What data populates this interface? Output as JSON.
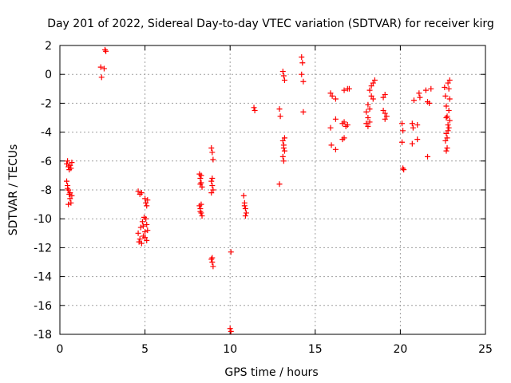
{
  "chart_data": {
    "type": "scatter",
    "title": "Day 201 of 2022, Sidereal Day-to-day VTEC variation (SDTVAR) for receiver kirg",
    "xlabel": "GPS time / hours",
    "ylabel": "SDTVAR / TECUs",
    "xlim": [
      0,
      25
    ],
    "ylim": [
      -18,
      2
    ],
    "xticks": [
      0,
      5,
      10,
      15,
      20,
      25
    ],
    "yticks": [
      2,
      0,
      -2,
      -4,
      -6,
      -8,
      -10,
      -12,
      -14,
      -16,
      -18
    ],
    "grid": true,
    "marker": "+",
    "color": "#ff0000",
    "series": [
      {
        "name": "SDTVAR",
        "points": [
          [
            0.4,
            -6.2
          ],
          [
            0.45,
            -6.0
          ],
          [
            0.5,
            -6.4
          ],
          [
            0.55,
            -6.6
          ],
          [
            0.6,
            -6.3
          ],
          [
            0.65,
            -6.5
          ],
          [
            0.7,
            -6.1
          ],
          [
            0.4,
            -7.4
          ],
          [
            0.45,
            -7.7
          ],
          [
            0.5,
            -8.0
          ],
          [
            0.55,
            -8.3
          ],
          [
            0.6,
            -8.6
          ],
          [
            0.65,
            -8.9
          ],
          [
            0.7,
            -8.4
          ],
          [
            0.5,
            -9.0
          ],
          [
            0.6,
            -8.2
          ],
          [
            0.45,
            -7.9
          ],
          [
            2.4,
            0.5
          ],
          [
            2.45,
            -0.2
          ],
          [
            2.6,
            0.4
          ],
          [
            2.65,
            1.7
          ],
          [
            2.7,
            1.6
          ],
          [
            4.6,
            -8.1
          ],
          [
            4.7,
            -8.3
          ],
          [
            4.8,
            -8.2
          ],
          [
            4.6,
            -11.0
          ],
          [
            4.7,
            -11.4
          ],
          [
            4.8,
            -11.7
          ],
          [
            4.9,
            -11.2
          ],
          [
            5.0,
            -10.9
          ],
          [
            5.1,
            -11.5
          ],
          [
            4.75,
            -10.6
          ],
          [
            4.85,
            -10.2
          ],
          [
            4.95,
            -9.9
          ],
          [
            5.05,
            -10.0
          ],
          [
            5.15,
            -10.8
          ],
          [
            4.65,
            -11.6
          ],
          [
            5.0,
            -11.3
          ],
          [
            4.9,
            -10.5
          ],
          [
            5.1,
            -10.4
          ],
          [
            5.0,
            -8.6
          ],
          [
            5.05,
            -8.9
          ],
          [
            5.1,
            -9.1
          ],
          [
            5.15,
            -8.7
          ],
          [
            8.2,
            -6.9
          ],
          [
            8.25,
            -7.2
          ],
          [
            8.3,
            -7.5
          ],
          [
            8.35,
            -7.8
          ],
          [
            8.3,
            -7.0
          ],
          [
            8.25,
            -7.6
          ],
          [
            8.2,
            -9.1
          ],
          [
            8.25,
            -9.3
          ],
          [
            8.3,
            -9.6
          ],
          [
            8.35,
            -9.8
          ],
          [
            8.3,
            -9.0
          ],
          [
            8.25,
            -9.5
          ],
          [
            8.9,
            -5.1
          ],
          [
            8.95,
            -5.4
          ],
          [
            9.0,
            -5.9
          ],
          [
            8.9,
            -7.4
          ],
          [
            8.95,
            -7.7
          ],
          [
            9.0,
            -8.0
          ],
          [
            8.9,
            -8.2
          ],
          [
            8.95,
            -7.2
          ],
          [
            8.9,
            -12.8
          ],
          [
            8.95,
            -13.0
          ],
          [
            9.0,
            -13.3
          ],
          [
            8.95,
            -12.7
          ],
          [
            10.05,
            -12.3
          ],
          [
            10.0,
            -17.6
          ],
          [
            10.05,
            -17.8
          ],
          [
            10.8,
            -8.4
          ],
          [
            10.85,
            -8.9
          ],
          [
            10.9,
            -9.3
          ],
          [
            10.95,
            -9.6
          ],
          [
            10.85,
            -9.1
          ],
          [
            10.9,
            -9.8
          ],
          [
            11.4,
            -2.3
          ],
          [
            11.45,
            -2.5
          ],
          [
            12.9,
            -2.4
          ],
          [
            12.95,
            -2.9
          ],
          [
            12.9,
            -7.6
          ],
          [
            13.1,
            0.2
          ],
          [
            13.15,
            -0.1
          ],
          [
            13.2,
            -0.4
          ],
          [
            13.1,
            -4.6
          ],
          [
            13.15,
            -4.9
          ],
          [
            13.2,
            -5.3
          ],
          [
            13.1,
            -5.7
          ],
          [
            13.15,
            -6.0
          ],
          [
            13.2,
            -4.4
          ],
          [
            13.15,
            -5.1
          ],
          [
            14.2,
            1.2
          ],
          [
            14.25,
            0.8
          ],
          [
            14.3,
            -0.5
          ],
          [
            14.2,
            0.0
          ],
          [
            14.3,
            -2.6
          ],
          [
            15.9,
            -1.3
          ],
          [
            16.0,
            -1.5
          ],
          [
            16.2,
            -1.7
          ],
          [
            15.9,
            -3.7
          ],
          [
            16.2,
            -3.1
          ],
          [
            15.95,
            -4.9
          ],
          [
            16.2,
            -5.2
          ],
          [
            16.6,
            -4.5
          ],
          [
            16.7,
            -4.4
          ],
          [
            16.6,
            -3.4
          ],
          [
            16.7,
            -3.3
          ],
          [
            16.8,
            -3.6
          ],
          [
            16.9,
            -3.5
          ],
          [
            16.7,
            -1.1
          ],
          [
            16.9,
            -1.0
          ],
          [
            17.0,
            -1.0
          ],
          [
            18.0,
            -2.6
          ],
          [
            18.1,
            -3.0
          ],
          [
            18.2,
            -3.3
          ],
          [
            18.1,
            -3.6
          ],
          [
            18.0,
            -3.4
          ],
          [
            18.2,
            -2.4
          ],
          [
            18.1,
            -2.1
          ],
          [
            18.2,
            -1.1
          ],
          [
            18.3,
            -0.8
          ],
          [
            18.4,
            -0.6
          ],
          [
            18.5,
            -0.4
          ],
          [
            18.3,
            -1.5
          ],
          [
            18.4,
            -1.7
          ],
          [
            19.0,
            -2.5
          ],
          [
            19.1,
            -2.7
          ],
          [
            19.2,
            -2.9
          ],
          [
            19.1,
            -3.1
          ],
          [
            19.0,
            -1.6
          ],
          [
            19.1,
            -1.4
          ],
          [
            20.1,
            -3.4
          ],
          [
            20.15,
            -3.9
          ],
          [
            20.1,
            -4.7
          ],
          [
            20.2,
            -6.6
          ],
          [
            20.15,
            -6.5
          ],
          [
            20.7,
            -3.4
          ],
          [
            20.75,
            -3.7
          ],
          [
            20.7,
            -4.8
          ],
          [
            20.8,
            -1.8
          ],
          [
            21.0,
            -3.5
          ],
          [
            21.0,
            -4.5
          ],
          [
            21.1,
            -1.3
          ],
          [
            21.15,
            -1.6
          ],
          [
            21.5,
            -1.1
          ],
          [
            21.6,
            -1.9
          ],
          [
            21.7,
            -2.0
          ],
          [
            21.6,
            -5.7
          ],
          [
            21.8,
            -1.0
          ],
          [
            22.6,
            -0.9
          ],
          [
            22.65,
            -1.5
          ],
          [
            22.7,
            -2.2
          ],
          [
            22.75,
            -2.9
          ],
          [
            22.8,
            -3.5
          ],
          [
            22.7,
            -4.1
          ],
          [
            22.65,
            -4.6
          ],
          [
            22.75,
            -5.1
          ],
          [
            22.7,
            -5.3
          ],
          [
            22.8,
            -0.6
          ],
          [
            22.85,
            -1.0
          ],
          [
            22.9,
            -1.7
          ],
          [
            22.85,
            -2.5
          ],
          [
            22.9,
            -3.2
          ],
          [
            22.8,
            -3.9
          ],
          [
            22.75,
            -4.4
          ],
          [
            22.9,
            -0.4
          ],
          [
            22.7,
            -3.0
          ],
          [
            22.85,
            -3.7
          ]
        ]
      }
    ]
  }
}
